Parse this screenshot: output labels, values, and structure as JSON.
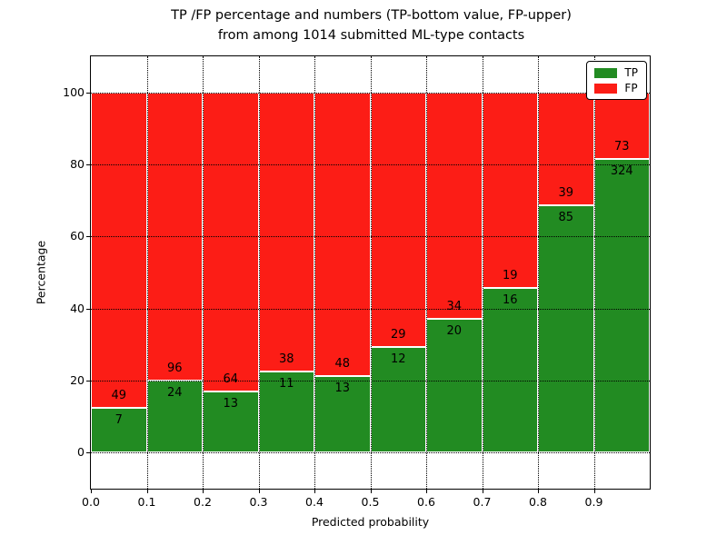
{
  "title": {
    "line1": "TP /FP percentage and numbers (TP-bottom value, FP-upper)",
    "line2": "from among 1014 submitted ML-type contacts"
  },
  "axes": {
    "xlabel": "Predicted probability",
    "ylabel": "Percentage",
    "xtick_labels": [
      "0.0",
      "0.1",
      "0.2",
      "0.3",
      "0.4",
      "0.5",
      "0.6",
      "0.7",
      "0.8",
      "0.9"
    ],
    "yticks": [
      0,
      20,
      40,
      60,
      80,
      100
    ],
    "ytick_labels": [
      "0",
      "20",
      "40",
      "60",
      "80",
      "100"
    ],
    "xlim": [
      0.0,
      1.0
    ],
    "ylim": [
      -10,
      110
    ],
    "grid": true
  },
  "legend": {
    "position": "upper right",
    "entries": [
      {
        "label": "TP",
        "color": "#228b22"
      },
      {
        "label": "FP",
        "color": "#fc1d16"
      }
    ]
  },
  "colors": {
    "tp_green": "#228b22",
    "fp_red": "#fc1d16",
    "background": "#ffffff",
    "text": "#000000",
    "grid": "#000000",
    "bar_edge": "#ffffff"
  },
  "chart_data": {
    "type": "bar",
    "stacked": true,
    "normalized_to_percent": true,
    "title": "TP /FP percentage and numbers (TP-bottom value, FP-upper) from among 1014 submitted ML-type contacts",
    "xlabel": "Predicted probability",
    "ylabel": "Percentage",
    "ylim": [
      -10,
      110
    ],
    "legend_position": "upper right",
    "grid": true,
    "bins": [
      "0.0-0.1",
      "0.1-0.2",
      "0.2-0.3",
      "0.3-0.4",
      "0.4-0.5",
      "0.5-0.6",
      "0.6-0.7",
      "0.7-0.8",
      "0.8-0.9",
      "0.9-1.0"
    ],
    "bin_edges": [
      0.0,
      0.1,
      0.2,
      0.3,
      0.4,
      0.5,
      0.6,
      0.7,
      0.8,
      0.9,
      1.0
    ],
    "series": [
      {
        "name": "TP",
        "color": "#228b22",
        "counts": [
          7,
          24,
          13,
          11,
          13,
          12,
          20,
          16,
          85,
          324
        ]
      },
      {
        "name": "FP",
        "color": "#fc1d16",
        "counts": [
          49,
          96,
          64,
          38,
          48,
          29,
          34,
          19,
          39,
          73
        ]
      }
    ],
    "tp_percent_heights": [
      12.5,
      20.0,
      16.9,
      22.4,
      21.3,
      29.3,
      37.0,
      45.7,
      68.5,
      81.6
    ],
    "total_contacts": 1014
  }
}
